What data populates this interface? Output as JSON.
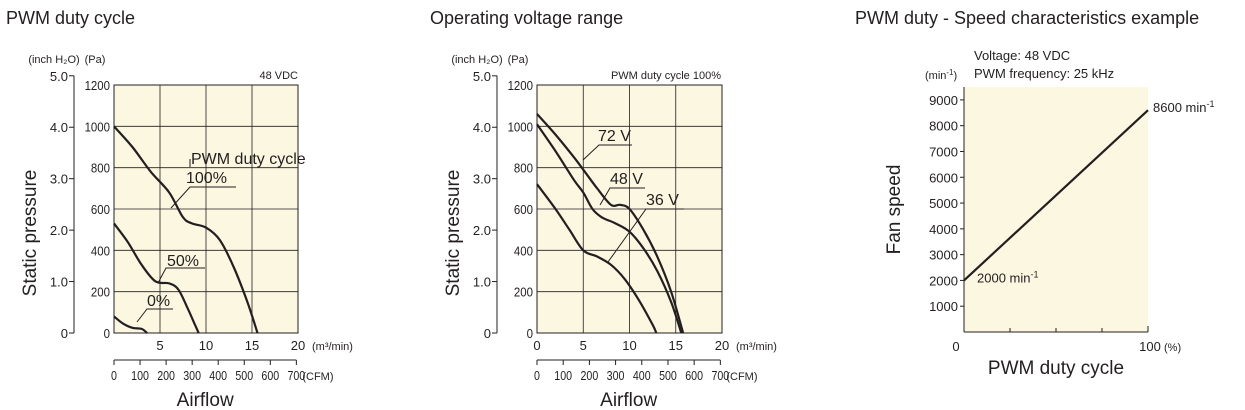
{
  "chart_data": [
    {
      "type": "line",
      "title": "PWM duty cycle",
      "ylabel": "Static pressure",
      "xlabel": "Airflow",
      "units": {
        "y_inch": "(inch H₂O)",
        "y_pa": "(Pa)",
        "x_m3": "(m³/min)",
        "x_cfm": "(CFM)"
      },
      "condition": "48 VDC",
      "legend_title": "PWM duty cycle",
      "y_pa_ticks": [
        "0",
        "200",
        "400",
        "600",
        "800",
        "1000",
        "1200"
      ],
      "y_inch_ticks": [
        "0",
        "1.0",
        "2.0",
        "3.0",
        "4.0",
        "5.0"
      ],
      "x_m3_ticks": [
        "5",
        "10",
        "15",
        "20"
      ],
      "x_cfm_ticks": [
        "0",
        "100",
        "200",
        "300",
        "400",
        "500",
        "600",
        "700"
      ],
      "xlim": [
        0,
        20
      ],
      "ylim": [
        0,
        1200
      ],
      "series": [
        {
          "name": "100%",
          "points": [
            [
              0,
              1000
            ],
            [
              2,
              900
            ],
            [
              4,
              780
            ],
            [
              6,
              680
            ],
            [
              7.5,
              560
            ],
            [
              8.5,
              530
            ],
            [
              10,
              510
            ],
            [
              11.5,
              450
            ],
            [
              13,
              320
            ],
            [
              14.5,
              150
            ],
            [
              15.6,
              0
            ]
          ]
        },
        {
          "name": "50%",
          "points": [
            [
              0,
              530
            ],
            [
              1.5,
              440
            ],
            [
              3,
              330
            ],
            [
              4.5,
              250
            ],
            [
              6,
              240
            ],
            [
              7,
              210
            ],
            [
              8,
              120
            ],
            [
              8.8,
              40
            ],
            [
              9.2,
              0
            ]
          ]
        },
        {
          "name": "0%",
          "points": [
            [
              0,
              80
            ],
            [
              1,
              45
            ],
            [
              2,
              25
            ],
            [
              3,
              20
            ],
            [
              3.6,
              0
            ]
          ]
        }
      ]
    },
    {
      "type": "line",
      "title": "Operating voltage range",
      "ylabel": "Static pressure",
      "xlabel": "Airflow",
      "units": {
        "y_inch": "(inch H₂O)",
        "y_pa": "(Pa)",
        "x_m3": "(m³/min)",
        "x_cfm": "(CFM)"
      },
      "condition": "PWM duty cycle 100%",
      "y_pa_ticks": [
        "0",
        "200",
        "400",
        "600",
        "800",
        "1000",
        "1200"
      ],
      "y_inch_ticks": [
        "0",
        "1.0",
        "2.0",
        "3.0",
        "4.0",
        "5.0"
      ],
      "x_m3_ticks": [
        "0",
        "5",
        "10",
        "15",
        "20"
      ],
      "x_cfm_ticks": [
        "0",
        "100",
        "200",
        "300",
        "400",
        "500",
        "600",
        "700"
      ],
      "xlim": [
        0,
        20
      ],
      "ylim": [
        0,
        1200
      ],
      "series": [
        {
          "name": "72 V",
          "points": [
            [
              0,
              1060
            ],
            [
              2,
              960
            ],
            [
              4,
              850
            ],
            [
              5.5,
              760
            ],
            [
              6.5,
              700
            ],
            [
              8,
              620
            ],
            [
              9,
              620
            ],
            [
              10,
              600
            ],
            [
              11.5,
              500
            ],
            [
              13,
              370
            ],
            [
              14.5,
              200
            ],
            [
              15.8,
              0
            ]
          ]
        },
        {
          "name": "48 V",
          "points": [
            [
              0,
              1010
            ],
            [
              2,
              880
            ],
            [
              4,
              740
            ],
            [
              5,
              680
            ],
            [
              6,
              600
            ],
            [
              7,
              560
            ],
            [
              8.5,
              530
            ],
            [
              10,
              490
            ],
            [
              11.5,
              410
            ],
            [
              13,
              300
            ],
            [
              14.5,
              150
            ],
            [
              15.6,
              0
            ]
          ]
        },
        {
          "name": "36 V",
          "points": [
            [
              0,
              720
            ],
            [
              2,
              600
            ],
            [
              3.5,
              500
            ],
            [
              5,
              400
            ],
            [
              6.5,
              370
            ],
            [
              8,
              330
            ],
            [
              9.5,
              260
            ],
            [
              11,
              160
            ],
            [
              12.5,
              40
            ],
            [
              12.9,
              0
            ]
          ]
        }
      ]
    },
    {
      "type": "line",
      "title": "PWM duty - Speed characteristics example",
      "ylabel": "Fan speed",
      "xlabel": "PWM duty cycle",
      "y_unit": "(min⁻¹)",
      "x_unit": "(%)",
      "conditions": [
        "Voltage: 48 VDC",
        "PWM frequency: 25 kHz"
      ],
      "y_ticks": [
        "1000",
        "2000",
        "3000",
        "4000",
        "5000",
        "6000",
        "7000",
        "8000",
        "9000"
      ],
      "x_ticks": [
        "0",
        "100"
      ],
      "xlim": [
        0,
        100
      ],
      "ylim": [
        0,
        9500
      ],
      "series": [
        {
          "points": [
            [
              0,
              2000
            ],
            [
              100,
              8600
            ]
          ]
        }
      ],
      "annotations": [
        {
          "text": "8600 min",
          "sup": "-1"
        },
        {
          "text": "2000 min",
          "sup": "-1"
        }
      ]
    }
  ]
}
